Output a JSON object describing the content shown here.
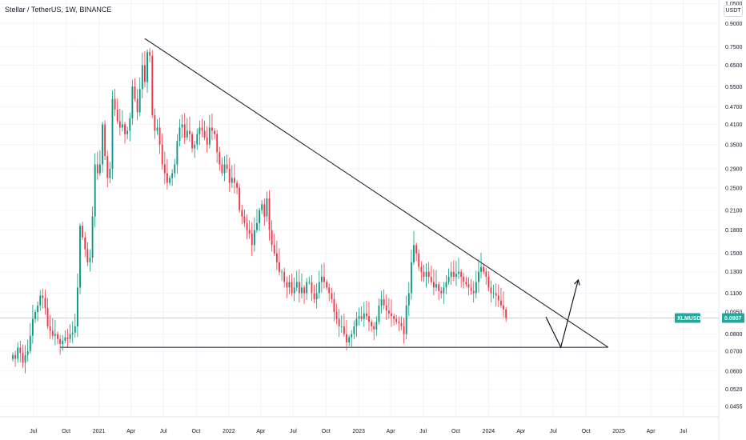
{
  "header": {
    "symbol_title": "Stellar / TetherUS, 1W, BINANCE",
    "currency": "USDT"
  },
  "price_tag": {
    "symbol": "XLMUSDT",
    "price": "0.0907",
    "value": 0.0907,
    "color": "#26a69a"
  },
  "colors": {
    "up": "#089981",
    "down": "#f23645",
    "line": "#131722",
    "grid": "#f0f3fa"
  },
  "chart_data": {
    "type": "candlestick",
    "y_scale": "log",
    "ylim": [
      0.042,
      1.08
    ],
    "y_ticks": [
      "1.0500",
      "0.9000",
      "0.7500",
      "0.6500",
      "0.5500",
      "0.4700",
      "0.4100",
      "0.3500",
      "0.2900",
      "0.2500",
      "0.2100",
      "0.1800",
      "0.1500",
      "0.1300",
      "0.1100",
      "0.0950",
      "0.0800",
      "0.0700",
      "0.0600",
      "0.0520",
      "0.0455"
    ],
    "x_ticks": [
      "Jul",
      "Oct",
      "2021",
      "Apr",
      "Jul",
      "Oct",
      "2022",
      "Apr",
      "Jul",
      "Oct",
      "2023",
      "Apr",
      "Jul",
      "Oct",
      "2024",
      "Apr",
      "Jul",
      "Oct",
      "2025",
      "Apr",
      "Jul"
    ],
    "xlim": [
      "2020-05-04",
      "2025-08-25"
    ],
    "candles_start": "2020-05-04",
    "candle_interval_days": 7,
    "closes": [
      0.068,
      0.066,
      0.072,
      0.069,
      0.064,
      0.068,
      0.07,
      0.079,
      0.09,
      0.095,
      0.1,
      0.108,
      0.106,
      0.098,
      0.085,
      0.082,
      0.079,
      0.08,
      0.077,
      0.074,
      0.076,
      0.078,
      0.077,
      0.08,
      0.081,
      0.085,
      0.115,
      0.186,
      0.17,
      0.155,
      0.14,
      0.145,
      0.2,
      0.3,
      0.28,
      0.3,
      0.41,
      0.32,
      0.27,
      0.29,
      0.5,
      0.46,
      0.42,
      0.4,
      0.41,
      0.38,
      0.39,
      0.43,
      0.55,
      0.5,
      0.45,
      0.54,
      0.65,
      0.57,
      0.72,
      0.7,
      0.44,
      0.39,
      0.4,
      0.35,
      0.3,
      0.28,
      0.26,
      0.27,
      0.28,
      0.3,
      0.36,
      0.4,
      0.41,
      0.37,
      0.39,
      0.38,
      0.34,
      0.35,
      0.38,
      0.4,
      0.39,
      0.37,
      0.35,
      0.4,
      0.39,
      0.38,
      0.33,
      0.3,
      0.28,
      0.3,
      0.29,
      0.26,
      0.27,
      0.26,
      0.25,
      0.21,
      0.2,
      0.19,
      0.18,
      0.175,
      0.16,
      0.18,
      0.19,
      0.21,
      0.22,
      0.2,
      0.23,
      0.18,
      0.16,
      0.15,
      0.14,
      0.13,
      0.13,
      0.12,
      0.115,
      0.12,
      0.11,
      0.115,
      0.12,
      0.11,
      0.115,
      0.11,
      0.12,
      0.12,
      0.11,
      0.105,
      0.11,
      0.12,
      0.125,
      0.12,
      0.115,
      0.11,
      0.105,
      0.095,
      0.09,
      0.085,
      0.085,
      0.08,
      0.075,
      0.078,
      0.08,
      0.085,
      0.09,
      0.092,
      0.09,
      0.094,
      0.092,
      0.088,
      0.085,
      0.083,
      0.088,
      0.1,
      0.105,
      0.1,
      0.096,
      0.094,
      0.092,
      0.09,
      0.088,
      0.087,
      0.085,
      0.08,
      0.1,
      0.11,
      0.14,
      0.16,
      0.15,
      0.135,
      0.13,
      0.125,
      0.13,
      0.125,
      0.12,
      0.115,
      0.118,
      0.112,
      0.11,
      0.115,
      0.12,
      0.125,
      0.13,
      0.125,
      0.128,
      0.13,
      0.125,
      0.12,
      0.118,
      0.115,
      0.112,
      0.11,
      0.12,
      0.13,
      0.135,
      0.13,
      0.125,
      0.115,
      0.11,
      0.11,
      0.108,
      0.104,
      0.1,
      0.097,
      0.0907
    ]
  }
}
